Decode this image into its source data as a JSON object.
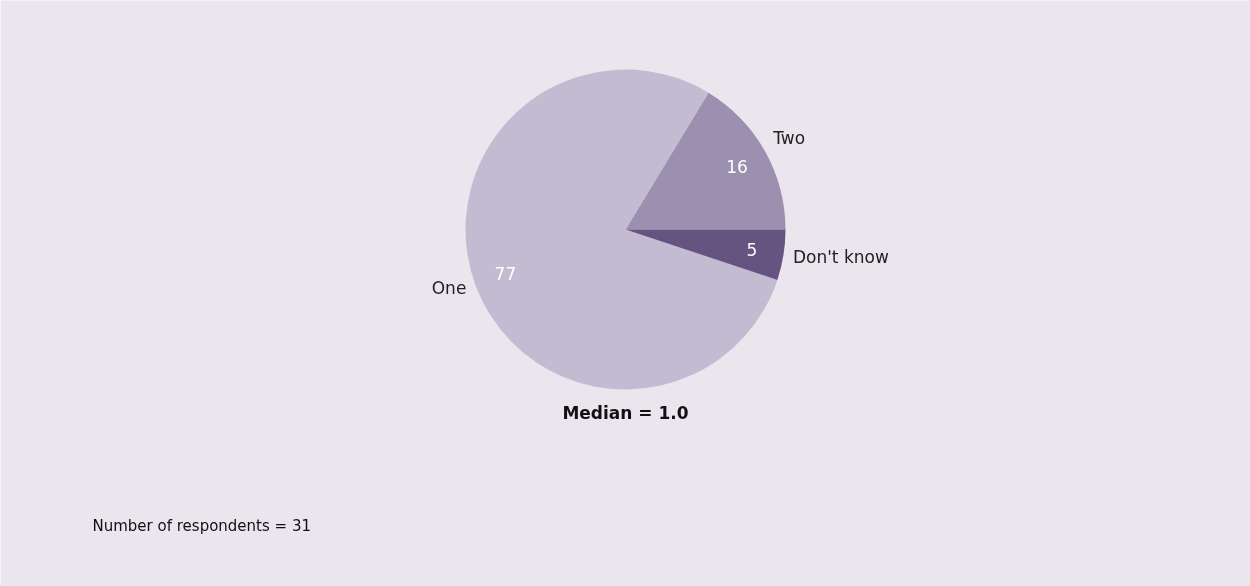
{
  "chart_data": {
    "type": "pie",
    "categories": [
      "Two",
      "One",
      "Don't know"
    ],
    "values": [
      16,
      77,
      5
    ],
    "colors": [
      "#9b90b0",
      "#c3bbd2",
      "#655381"
    ],
    "data_labels": true,
    "annotations": [
      "Median = 1.0",
      "Number of respondents = 31"
    ]
  }
}
